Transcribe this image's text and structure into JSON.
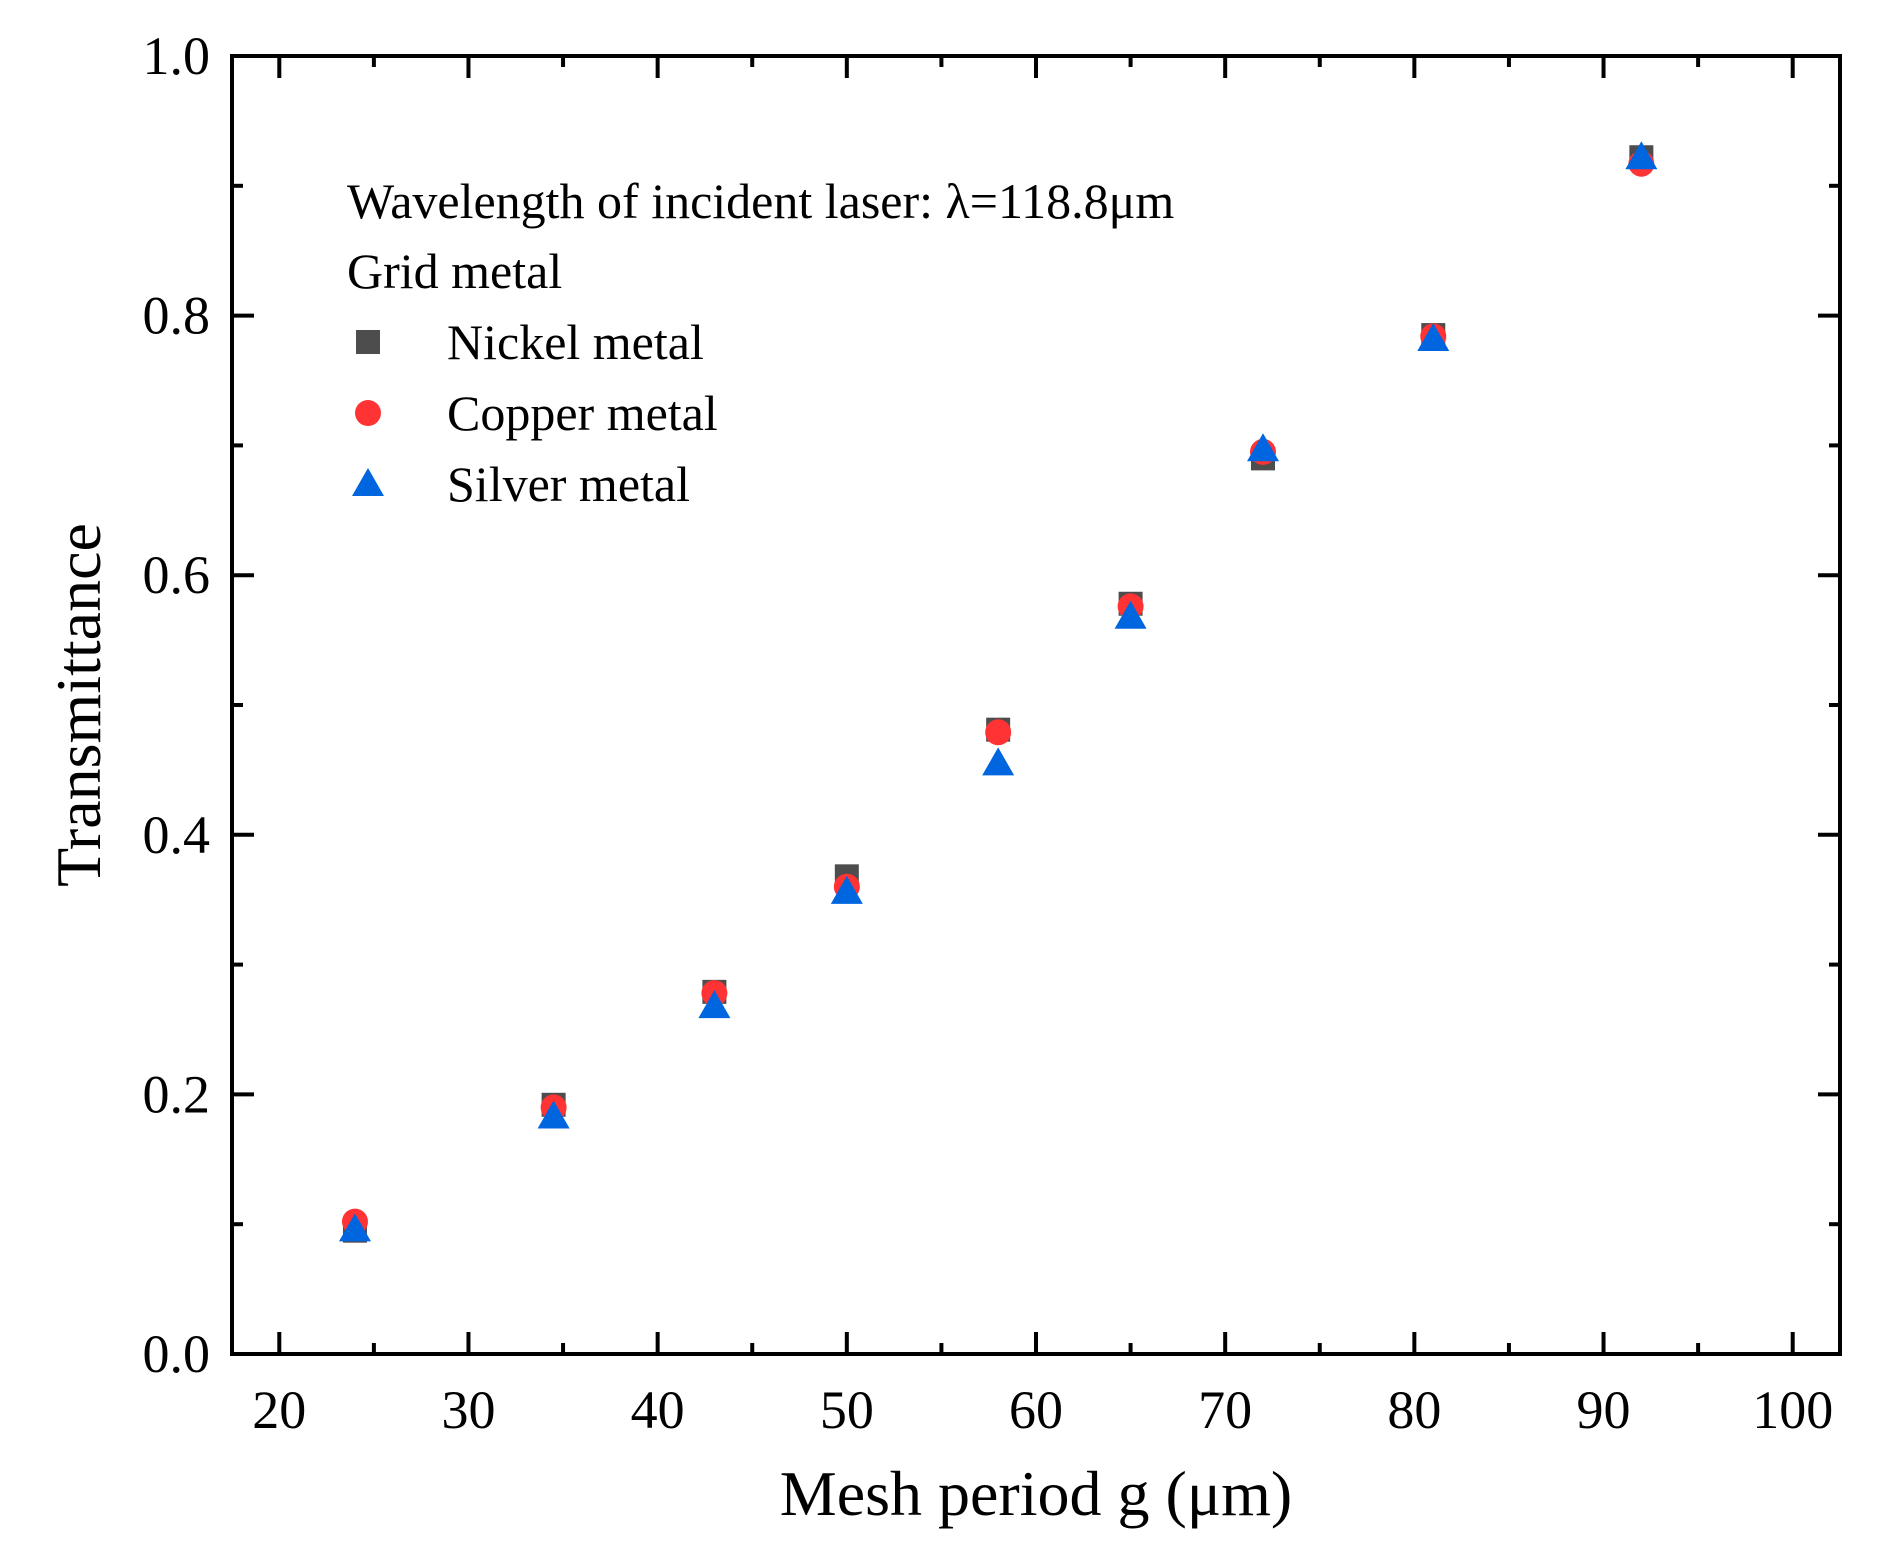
{
  "chart_data": {
    "type": "scatter",
    "xlabel": "Mesh period g (μm)",
    "ylabel": "Transmittance",
    "xlim": [
      17.5,
      102.5
    ],
    "ylim": [
      0.0,
      1.0
    ],
    "xticks": [
      20,
      30,
      40,
      50,
      60,
      70,
      80,
      90,
      100
    ],
    "xtick_labels": [
      "20",
      "30",
      "40",
      "50",
      "60",
      "70",
      "80",
      "90",
      "100"
    ],
    "yticks": [
      0.0,
      0.2,
      0.4,
      0.6,
      0.8,
      1.0
    ],
    "ytick_labels": [
      "0.0",
      "0.2",
      "0.4",
      "0.6",
      "0.8",
      "1.0"
    ],
    "x_minor_step": 5,
    "y_minor_step": 0.1,
    "grid": false,
    "legend_position": "top-left",
    "annotation": "Wavelength of incident laser: λ=118.8μm",
    "legend_title": "Grid metal",
    "x": [
      24,
      34.5,
      43,
      50,
      58,
      65,
      72,
      81,
      92
    ],
    "series": [
      {
        "name": "Nickel metal",
        "marker": "square",
        "color": "#4d4d4d",
        "values": [
          0.095,
          0.192,
          0.279,
          0.368,
          0.481,
          0.578,
          0.69,
          0.785,
          0.922
        ]
      },
      {
        "name": "Copper metal",
        "marker": "circle",
        "color": "#ff3333",
        "values": [
          0.102,
          0.19,
          0.278,
          0.36,
          0.479,
          0.576,
          0.695,
          0.784,
          0.917
        ]
      },
      {
        "name": "Silver metal",
        "marker": "triangle",
        "color": "#0066e0",
        "values": [
          0.096,
          0.183,
          0.268,
          0.356,
          0.455,
          0.568,
          0.697,
          0.782,
          0.922
        ]
      }
    ]
  }
}
